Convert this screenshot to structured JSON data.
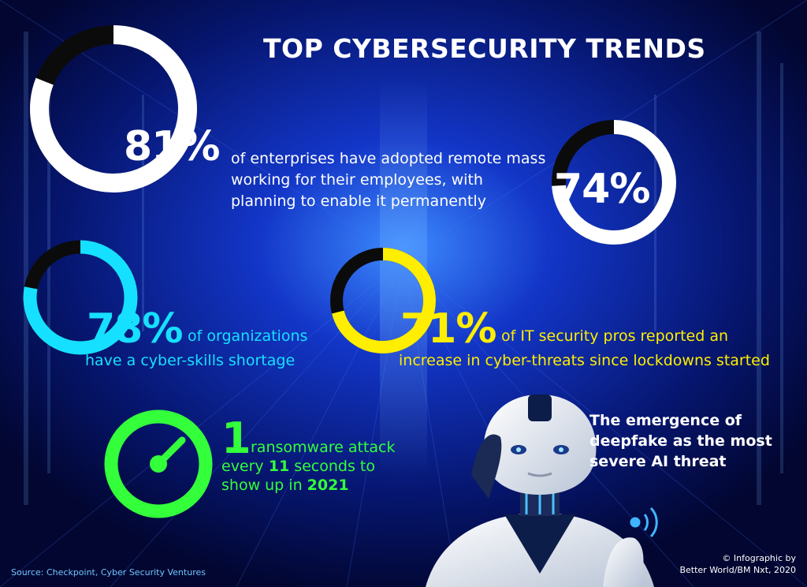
{
  "title": "TOP CYBERSECURITY TRENDS",
  "stats": {
    "s81": {
      "value": "81%",
      "fraction": 0.81,
      "text": "of enterprises have adopted remote mass working for their employees, with planning to enable it permanently"
    },
    "s74": {
      "value": "74%",
      "fraction": 0.74
    },
    "s78": {
      "value": "78%",
      "fraction": 0.78,
      "text_a": "of organizations",
      "text_b": "have a cyber-skills shortage"
    },
    "s71": {
      "value": "71%",
      "fraction": 0.71,
      "text_a": "of IT security pros reported an",
      "text_b": "increase in cyber-threats since lockdowns started"
    }
  },
  "ransomware": {
    "num": "1",
    "line1": "ransomware attack",
    "line2_pre": "every ",
    "line2_bold": "11",
    "line2_post": " seconds to",
    "line3_pre": "show up in ",
    "line3_bold": "2021"
  },
  "deepfake": "The emergence of deepfake as the most severe AI threat",
  "source": "Source: Checkpoint, Cyber Security Ventures",
  "credit_line1": "© Infographic by",
  "credit_line2": "Better World/BM Nxt, 2020",
  "colors": {
    "white": "#ffffff",
    "cyan": "#16e0ff",
    "yellow": "#ffee00",
    "green": "#33ff3a",
    "bg": "#0a1fa8"
  },
  "icons": [
    "stopwatch-icon",
    "robot-illustration"
  ]
}
